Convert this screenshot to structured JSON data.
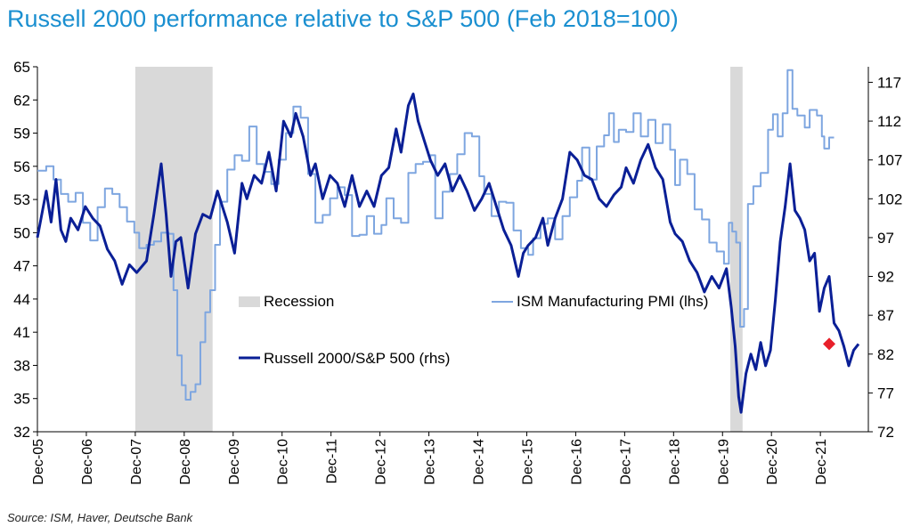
{
  "title": "Russell 2000 performance relative to S&P 500  (Feb 2018=100)",
  "source": "Source: ISM, Haver, Deutsche Bank",
  "chart_data": {
    "type": "line",
    "x_tick_labels": [
      "Dec-05",
      "Dec-06",
      "Dec-07",
      "Dec-08",
      "Dec-09",
      "Dec-10",
      "Dec-11",
      "Dec-12",
      "Dec-13",
      "Dec-14",
      "Dec-15",
      "Dec-16",
      "Dec-17",
      "Dec-18",
      "Dec-19",
      "Dec-20",
      "Dec-21"
    ],
    "xlim": [
      2005.92,
      2022.9
    ],
    "y_left": {
      "label": "ISM Manufacturing PMI (lhs)",
      "ticks": [
        32,
        35,
        38,
        41,
        44,
        47,
        50,
        53,
        56,
        59,
        62,
        65
      ],
      "lim": [
        32,
        65
      ]
    },
    "y_right": {
      "label": "Russell 2000/S&P 500 (rhs)",
      "ticks": [
        72,
        77,
        82,
        87,
        92,
        97,
        102,
        107,
        112,
        117
      ],
      "lim": [
        72,
        119
      ]
    },
    "legend": [
      {
        "key": "recession",
        "label": "Recession"
      },
      {
        "key": "ism",
        "label": "ISM Manufacturing PMI (lhs)"
      },
      {
        "key": "russell",
        "label": "Russell 2000/S&P 500 (rhs)"
      }
    ],
    "recessions": [
      [
        2007.92,
        2009.5
      ],
      [
        2020.08,
        2020.33
      ]
    ],
    "colors": {
      "ism": "#7ea6e0",
      "russell": "#0a1f96",
      "recession": "#d9d9d9",
      "marker": "#e8202a"
    },
    "marker": {
      "x": 2022.1,
      "y": 83.3,
      "axis": "rhs"
    },
    "series": [
      {
        "name": "ISM Manufacturing PMI (lhs)",
        "axis": "lhs",
        "points": [
          [
            2005.92,
            55.6
          ],
          [
            2006.1,
            56.0
          ],
          [
            2006.25,
            54.8
          ],
          [
            2006.4,
            53.5
          ],
          [
            2006.55,
            52.8
          ],
          [
            2006.7,
            53.6
          ],
          [
            2006.85,
            50.9
          ],
          [
            2007.0,
            49.3
          ],
          [
            2007.15,
            52.3
          ],
          [
            2007.3,
            54.0
          ],
          [
            2007.45,
            53.5
          ],
          [
            2007.6,
            52.3
          ],
          [
            2007.75,
            51.0
          ],
          [
            2007.9,
            50.0
          ],
          [
            2008.0,
            48.6
          ],
          [
            2008.15,
            48.9
          ],
          [
            2008.3,
            49.2
          ],
          [
            2008.45,
            50.0
          ],
          [
            2008.6,
            49.9
          ],
          [
            2008.7,
            44.8
          ],
          [
            2008.78,
            38.9
          ],
          [
            2008.87,
            36.2
          ],
          [
            2008.95,
            34.9
          ],
          [
            2009.05,
            35.6
          ],
          [
            2009.15,
            36.3
          ],
          [
            2009.25,
            40.1
          ],
          [
            2009.35,
            42.8
          ],
          [
            2009.45,
            44.8
          ],
          [
            2009.55,
            48.9
          ],
          [
            2009.65,
            52.8
          ],
          [
            2009.8,
            55.7
          ],
          [
            2009.95,
            57.0
          ],
          [
            2010.1,
            56.5
          ],
          [
            2010.25,
            59.6
          ],
          [
            2010.4,
            56.2
          ],
          [
            2010.55,
            55.5
          ],
          [
            2010.7,
            54.4
          ],
          [
            2010.85,
            56.6
          ],
          [
            2011.0,
            59.0
          ],
          [
            2011.15,
            61.4
          ],
          [
            2011.3,
            60.4
          ],
          [
            2011.45,
            55.3
          ],
          [
            2011.6,
            50.9
          ],
          [
            2011.75,
            51.6
          ],
          [
            2011.9,
            53.1
          ],
          [
            2012.05,
            54.1
          ],
          [
            2012.2,
            53.4
          ],
          [
            2012.35,
            49.7
          ],
          [
            2012.5,
            49.8
          ],
          [
            2012.65,
            51.5
          ],
          [
            2012.8,
            49.9
          ],
          [
            2012.95,
            50.7
          ],
          [
            2013.05,
            53.1
          ],
          [
            2013.2,
            51.3
          ],
          [
            2013.35,
            50.9
          ],
          [
            2013.5,
            55.4
          ],
          [
            2013.65,
            56.2
          ],
          [
            2013.8,
            56.4
          ],
          [
            2013.95,
            57.0
          ],
          [
            2014.05,
            51.3
          ],
          [
            2014.2,
            53.7
          ],
          [
            2014.35,
            55.3
          ],
          [
            2014.5,
            57.1
          ],
          [
            2014.65,
            59.0
          ],
          [
            2014.8,
            58.7
          ],
          [
            2014.95,
            55.1
          ],
          [
            2015.05,
            53.5
          ],
          [
            2015.2,
            51.5
          ],
          [
            2015.35,
            52.8
          ],
          [
            2015.5,
            52.7
          ],
          [
            2015.65,
            50.2
          ],
          [
            2015.8,
            48.6
          ],
          [
            2015.95,
            48.0
          ],
          [
            2016.05,
            49.5
          ],
          [
            2016.2,
            50.8
          ],
          [
            2016.35,
            51.3
          ],
          [
            2016.5,
            49.4
          ],
          [
            2016.65,
            51.5
          ],
          [
            2016.8,
            53.2
          ],
          [
            2016.95,
            54.7
          ],
          [
            2017.05,
            57.7
          ],
          [
            2017.2,
            54.8
          ],
          [
            2017.35,
            57.8
          ],
          [
            2017.5,
            58.8
          ],
          [
            2017.6,
            60.8
          ],
          [
            2017.7,
            58.2
          ],
          [
            2017.8,
            59.3
          ],
          [
            2017.95,
            59.1
          ],
          [
            2018.1,
            60.8
          ],
          [
            2018.25,
            58.7
          ],
          [
            2018.4,
            60.2
          ],
          [
            2018.55,
            58.1
          ],
          [
            2018.7,
            59.8
          ],
          [
            2018.85,
            57.5
          ],
          [
            2018.95,
            54.3
          ],
          [
            2019.05,
            56.6
          ],
          [
            2019.2,
            55.3
          ],
          [
            2019.35,
            52.1
          ],
          [
            2019.5,
            51.2
          ],
          [
            2019.65,
            49.1
          ],
          [
            2019.8,
            48.3
          ],
          [
            2019.95,
            47.2
          ],
          [
            2020.05,
            50.9
          ],
          [
            2020.12,
            50.1
          ],
          [
            2020.2,
            49.1
          ],
          [
            2020.28,
            41.5
          ],
          [
            2020.36,
            43.1
          ],
          [
            2020.44,
            52.6
          ],
          [
            2020.55,
            54.2
          ],
          [
            2020.7,
            55.4
          ],
          [
            2020.85,
            59.3
          ],
          [
            2020.95,
            60.7
          ],
          [
            2021.05,
            58.7
          ],
          [
            2021.15,
            60.8
          ],
          [
            2021.25,
            64.7
          ],
          [
            2021.35,
            61.2
          ],
          [
            2021.45,
            60.6
          ],
          [
            2021.6,
            59.5
          ],
          [
            2021.7,
            61.1
          ],
          [
            2021.85,
            60.6
          ],
          [
            2021.95,
            58.7
          ],
          [
            2022.0,
            57.6
          ],
          [
            2022.1,
            58.6
          ],
          [
            2022.2,
            58.6
          ]
        ]
      },
      {
        "name": "Russell 2000/S&P 500 (rhs)",
        "axis": "rhs",
        "points": [
          [
            2005.92,
            97.0
          ],
          [
            2006.1,
            103.0
          ],
          [
            2006.2,
            99.0
          ],
          [
            2006.3,
            104.5
          ],
          [
            2006.4,
            98.0
          ],
          [
            2006.5,
            96.5
          ],
          [
            2006.6,
            99.5
          ],
          [
            2006.75,
            98.0
          ],
          [
            2006.9,
            101.0
          ],
          [
            2007.05,
            99.5
          ],
          [
            2007.2,
            98.5
          ],
          [
            2007.35,
            95.5
          ],
          [
            2007.5,
            94.0
          ],
          [
            2007.65,
            91.0
          ],
          [
            2007.8,
            93.5
          ],
          [
            2007.95,
            92.5
          ],
          [
            2008.15,
            94.0
          ],
          [
            2008.3,
            100.0
          ],
          [
            2008.45,
            106.5
          ],
          [
            2008.55,
            100.0
          ],
          [
            2008.65,
            92.0
          ],
          [
            2008.75,
            96.5
          ],
          [
            2008.85,
            97.0
          ],
          [
            2009.0,
            90.5
          ],
          [
            2009.15,
            97.5
          ],
          [
            2009.3,
            100.0
          ],
          [
            2009.45,
            99.5
          ],
          [
            2009.6,
            103.0
          ],
          [
            2009.8,
            99.0
          ],
          [
            2009.95,
            95.0
          ],
          [
            2010.1,
            104.0
          ],
          [
            2010.2,
            102.0
          ],
          [
            2010.35,
            105.0
          ],
          [
            2010.5,
            104.0
          ],
          [
            2010.65,
            108.0
          ],
          [
            2010.8,
            103.0
          ],
          [
            2010.95,
            112.0
          ],
          [
            2011.1,
            110.0
          ],
          [
            2011.2,
            113.0
          ],
          [
            2011.35,
            110.0
          ],
          [
            2011.5,
            105.0
          ],
          [
            2011.6,
            106.5
          ],
          [
            2011.75,
            102.0
          ],
          [
            2011.9,
            105.0
          ],
          [
            2012.05,
            104.0
          ],
          [
            2012.2,
            101.0
          ],
          [
            2012.35,
            105.0
          ],
          [
            2012.5,
            101.0
          ],
          [
            2012.65,
            103.0
          ],
          [
            2012.8,
            101.0
          ],
          [
            2012.95,
            105.0
          ],
          [
            2013.1,
            106.0
          ],
          [
            2013.25,
            111.0
          ],
          [
            2013.35,
            108.0
          ],
          [
            2013.5,
            114.0
          ],
          [
            2013.6,
            115.5
          ],
          [
            2013.7,
            112.0
          ],
          [
            2013.85,
            109.0
          ],
          [
            2013.95,
            107.0
          ],
          [
            2014.1,
            105.0
          ],
          [
            2014.25,
            106.5
          ],
          [
            2014.4,
            103.0
          ],
          [
            2014.55,
            105.0
          ],
          [
            2014.7,
            103.0
          ],
          [
            2014.85,
            100.5
          ],
          [
            2015.0,
            102.0
          ],
          [
            2015.15,
            104.0
          ],
          [
            2015.3,
            101.0
          ],
          [
            2015.45,
            98.0
          ],
          [
            2015.6,
            96.0
          ],
          [
            2015.75,
            92.0
          ],
          [
            2015.85,
            95.0
          ],
          [
            2015.95,
            96.0
          ],
          [
            2016.1,
            97.0
          ],
          [
            2016.25,
            99.5
          ],
          [
            2016.35,
            96.0
          ],
          [
            2016.5,
            99.5
          ],
          [
            2016.65,
            102.0
          ],
          [
            2016.8,
            108.0
          ],
          [
            2016.95,
            107.0
          ],
          [
            2017.1,
            105.0
          ],
          [
            2017.25,
            104.5
          ],
          [
            2017.4,
            102.0
          ],
          [
            2017.55,
            101.0
          ],
          [
            2017.7,
            102.5
          ],
          [
            2017.85,
            103.5
          ],
          [
            2017.95,
            106.0
          ],
          [
            2018.1,
            104.0
          ],
          [
            2018.25,
            107.0
          ],
          [
            2018.4,
            109.0
          ],
          [
            2018.55,
            106.0
          ],
          [
            2018.7,
            104.5
          ],
          [
            2018.85,
            99.0
          ],
          [
            2018.95,
            97.5
          ],
          [
            2019.1,
            96.5
          ],
          [
            2019.25,
            94.0
          ],
          [
            2019.4,
            92.5
          ],
          [
            2019.55,
            90.0
          ],
          [
            2019.7,
            92.0
          ],
          [
            2019.85,
            90.5
          ],
          [
            2020.0,
            93.0
          ],
          [
            2020.1,
            88.0
          ],
          [
            2020.18,
            83.0
          ],
          [
            2020.25,
            76.5
          ],
          [
            2020.3,
            74.5
          ],
          [
            2020.4,
            79.5
          ],
          [
            2020.5,
            82.0
          ],
          [
            2020.6,
            80.0
          ],
          [
            2020.7,
            83.5
          ],
          [
            2020.8,
            80.5
          ],
          [
            2020.9,
            82.5
          ],
          [
            2021.0,
            89.0
          ],
          [
            2021.1,
            96.5
          ],
          [
            2021.2,
            101.0
          ],
          [
            2021.3,
            106.5
          ],
          [
            2021.4,
            100.5
          ],
          [
            2021.5,
            99.5
          ],
          [
            2021.6,
            98.0
          ],
          [
            2021.7,
            94.0
          ],
          [
            2021.8,
            95.0
          ],
          [
            2021.9,
            87.5
          ],
          [
            2022.0,
            90.5
          ],
          [
            2022.1,
            92.0
          ],
          [
            2022.2,
            86.0
          ],
          [
            2022.3,
            85.0
          ],
          [
            2022.4,
            83.0
          ],
          [
            2022.5,
            80.5
          ],
          [
            2022.6,
            82.5
          ],
          [
            2022.7,
            83.3
          ]
        ]
      }
    ]
  }
}
